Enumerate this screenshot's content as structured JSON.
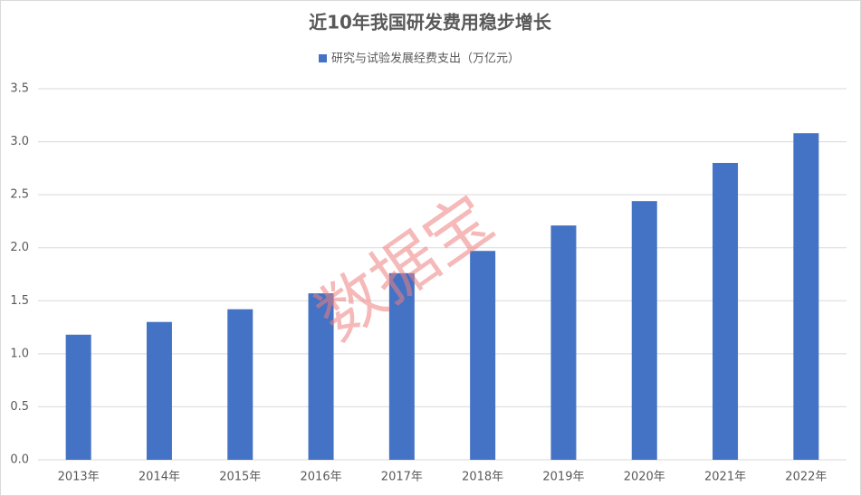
{
  "chart_data": {
    "type": "bar",
    "title": "近10年我国研发费用稳步增长",
    "watermark": "数据宝",
    "categories": [
      "2013年",
      "2014年",
      "2015年",
      "2016年",
      "2017年",
      "2018年",
      "2019年",
      "2020年",
      "2021年",
      "2022年"
    ],
    "series": [
      {
        "name": "研究与试验发展经费支出（万亿元）",
        "color": "#4472c4",
        "values": [
          1.18,
          1.3,
          1.42,
          1.57,
          1.76,
          1.97,
          2.21,
          2.44,
          2.8,
          3.08
        ]
      }
    ],
    "ylim": [
      0,
      3.5
    ],
    "yticks": [
      {
        "value": 0,
        "label": "0.0"
      },
      0.5,
      {
        "value": 1,
        "label": "1.0"
      },
      1.5,
      {
        "value": 2,
        "label": "2.0"
      },
      2.5,
      {
        "value": 3,
        "label": "3.0"
      },
      3.5
    ],
    "grid": true,
    "legend": "top"
  }
}
